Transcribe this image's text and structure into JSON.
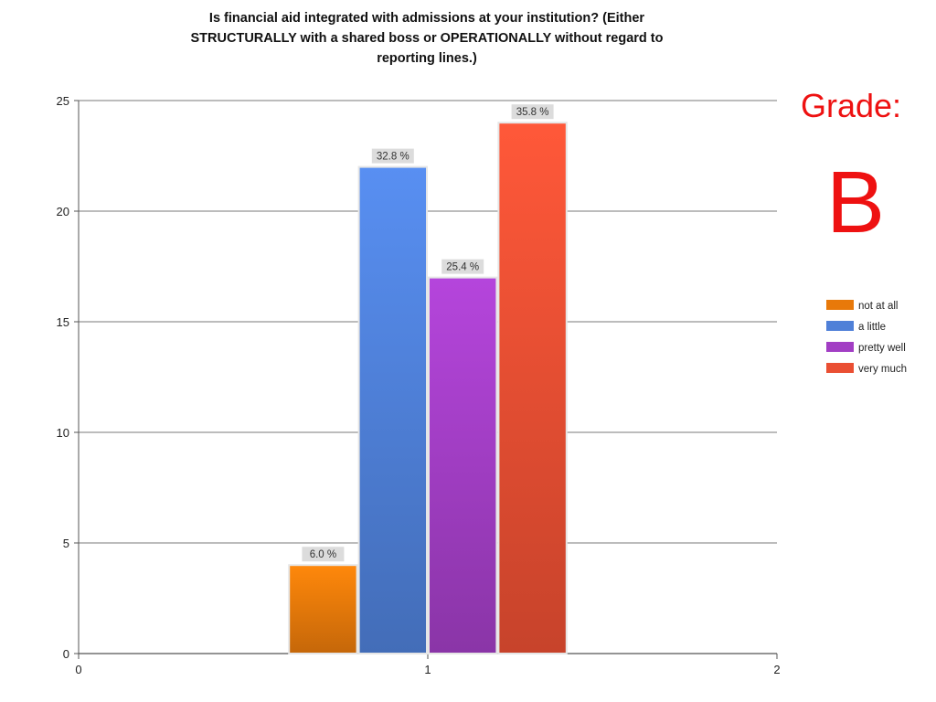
{
  "title_lines": [
    "Is financial aid integrated with admissions at your institution? (Either",
    "STRUCTURALLY with a shared boss or OPERATIONALLY without regard to",
    "reporting lines.)"
  ],
  "grade": {
    "label": "Grade:",
    "value": "B",
    "color": "#ee1111"
  },
  "chart_data": {
    "type": "bar",
    "title": "Is financial aid integrated with admissions at your institution? (Either STRUCTURALLY with a shared boss or OPERATIONALLY without regard to reporting lines.)",
    "xlabel": "",
    "ylabel": "",
    "x_ticks": [
      "0",
      "1",
      "2"
    ],
    "xlim": [
      0,
      2
    ],
    "ylim": [
      0,
      25
    ],
    "y_ticks": [
      0,
      5,
      10,
      15,
      20,
      25
    ],
    "grid": true,
    "legend_position": "right",
    "category_x": 1,
    "series": [
      {
        "name": "not at all",
        "value": 4,
        "label": "6.0 %",
        "color": "#e8790a"
      },
      {
        "name": "a little",
        "value": 22,
        "label": "32.8 %",
        "color": "#4f80d8"
      },
      {
        "name": "pretty well",
        "value": 17,
        "label": "25.4 %",
        "color": "#a23ec4"
      },
      {
        "name": "very much",
        "value": 24,
        "label": "35.8 %",
        "color": "#ea4f33"
      }
    ]
  }
}
